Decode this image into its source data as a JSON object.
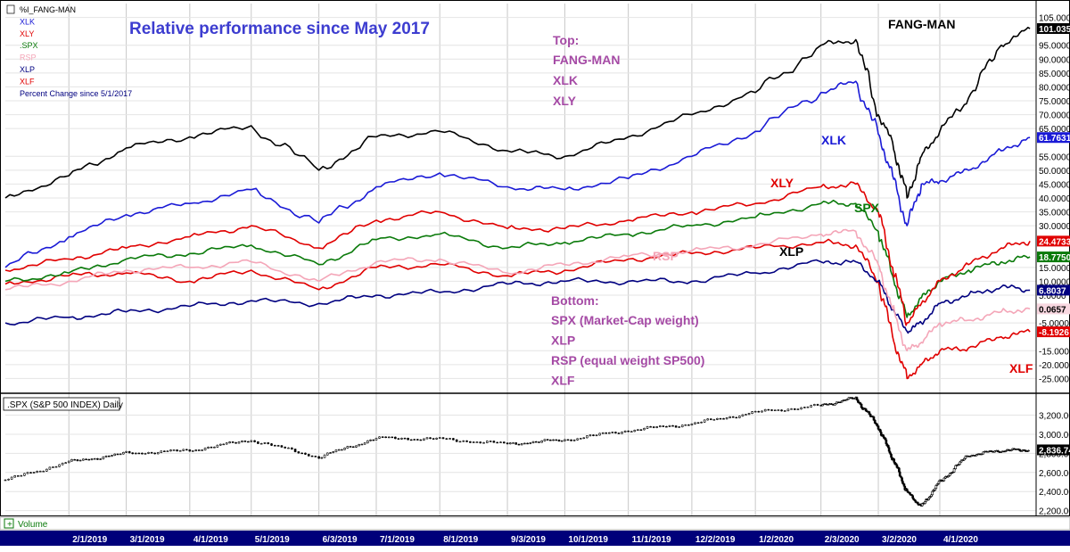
{
  "chart_data": [
    {
      "type": "line",
      "title": "Relative performance since May 2017",
      "legend_placement": "top-left",
      "legend": [
        {
          "label": "%I_FANG-MAN",
          "color": "#000000"
        },
        {
          "label": "XLK",
          "color": "#1a1ad6"
        },
        {
          "label": "XLY",
          "color": "#e00000"
        },
        {
          "label": ".SPX",
          "color": "#0a7a0a"
        },
        {
          "label": "RSP",
          "color": "#f4a6b8"
        },
        {
          "label": "XLP",
          "color": "#000080"
        },
        {
          "label": "XLF",
          "color": "#e00000"
        },
        {
          "label": "Percent Change since 5/1/2017",
          "color": "#000080"
        }
      ],
      "annotations": {
        "top_header": "Top:",
        "top_items": [
          "FANG-MAN",
          "XLK",
          "XLY"
        ],
        "bottom_header": "Bottom:",
        "bottom_items": [
          "SPX (Market-Cap weight)",
          "XLP",
          "RSP (equal weight SP500)",
          "XLF"
        ],
        "series_labels": [
          {
            "text": "FANG-MAN",
            "color": "#000000"
          },
          {
            "text": "XLK",
            "color": "#1a1ad6"
          },
          {
            "text": "XLY",
            "color": "#e00000"
          },
          {
            "text": "SPX",
            "color": "#0a7a0a"
          },
          {
            "text": "RSP",
            "color": "#f4a6b8"
          },
          {
            "text": "XLP",
            "color": "#000000"
          },
          {
            "text": "XLF",
            "color": "#e00000"
          }
        ]
      },
      "ylabel": "",
      "ylim": [
        -30,
        110
      ],
      "y_ticks": [
        105,
        95,
        90,
        85,
        80,
        75,
        70,
        65,
        55,
        50,
        45,
        40,
        35,
        30,
        15,
        10,
        5,
        -5,
        -15,
        -20,
        -25
      ],
      "y_tick_labels": [
        "105.000",
        "95.0000",
        "90.0000",
        "85.0000",
        "80.0000",
        "75.0000",
        "70.0000",
        "65.0000",
        "55.0000",
        "50.0000",
        "45.0000",
        "40.0000",
        "35.0000",
        "30.0000",
        "15.0000",
        "10.0000",
        "5.0000",
        "-5.0000",
        "-15.0000",
        "-20.0000",
        "-25.0000"
      ],
      "grid": true,
      "x_dates": [
        "2019-01-01",
        "2019-02-01",
        "2019-03-01",
        "2019-04-01",
        "2019-05-01",
        "2019-06-03",
        "2019-07-01",
        "2019-08-01",
        "2019-09-03",
        "2019-10-01",
        "2019-11-01",
        "2019-12-02",
        "2020-01-02",
        "2020-02-03",
        "2020-02-20",
        "2020-03-02",
        "2020-03-09",
        "2020-03-16",
        "2020-03-23",
        "2020-04-01",
        "2020-04-15",
        "2020-05-01",
        "2020-05-15"
      ],
      "series": [
        {
          "name": "%I_FANG-MAN",
          "color": "#000000",
          "last_value": "101.035",
          "values": [
            40,
            48,
            58,
            62,
            66,
            50,
            62,
            64,
            57,
            55,
            62,
            70,
            78,
            95,
            97,
            70,
            60,
            40,
            55,
            64,
            76,
            95,
            101
          ]
        },
        {
          "name": "XLK",
          "color": "#1a1ad6",
          "last_value": "61.7631",
          "values": [
            15,
            26,
            34,
            38,
            43,
            31,
            44,
            49,
            44,
            43,
            47,
            55,
            64,
            78,
            82,
            63,
            48,
            30,
            45,
            46,
            50,
            57,
            61.76
          ]
        },
        {
          "name": "XLY",
          "color": "#e00000",
          "last_value": "24.4733",
          "values": [
            14,
            18,
            22,
            26,
            30,
            22,
            32,
            35,
            29,
            29,
            32,
            35,
            38,
            44,
            45,
            35,
            15,
            -5,
            2,
            10,
            16,
            22,
            24.47
          ]
        },
        {
          "name": ".SPX",
          "color": "#0a7a0a",
          "last_value": "18.7750",
          "values": [
            10,
            13,
            18,
            20,
            23,
            16,
            25,
            27,
            22,
            24,
            27,
            30,
            33,
            38,
            38,
            28,
            12,
            -3,
            4,
            10,
            14,
            17,
            18.78
          ]
        },
        {
          "name": "RSP",
          "color": "#f4a6b8",
          "last_value": "0.0657",
          "values": [
            7,
            10,
            14,
            15,
            17,
            10,
            17,
            18,
            13,
            16,
            19,
            21,
            23,
            27,
            28,
            16,
            0,
            -15,
            -12,
            -5,
            -4,
            -1,
            0.07
          ]
        },
        {
          "name": "XLP",
          "color": "#000080",
          "last_value": "6.8037",
          "values": [
            -5,
            -3,
            -1,
            1,
            3,
            2,
            5,
            6,
            9,
            10,
            10,
            10,
            13,
            17,
            17,
            10,
            0,
            -8,
            -5,
            2,
            5,
            8,
            6.8
          ]
        },
        {
          "name": "XLF",
          "color": "#e00000",
          "last_value": "-8.1926",
          "values": [
            9,
            12,
            13,
            10,
            14,
            7,
            15,
            16,
            12,
            14,
            18,
            20,
            22,
            24,
            23,
            10,
            -10,
            -25,
            -20,
            -15,
            -14,
            -10,
            -8.19
          ]
        }
      ]
    },
    {
      "type": "candlestick",
      "title": ".SPX (S&P 500 INDEX) Daily",
      "ylim": [
        2150,
        3420
      ],
      "y_ticks": [
        3200,
        3000,
        2800,
        2600,
        2400,
        2200
      ],
      "y_tick_labels": [
        "3,200.00",
        "3,000.00",
        "2,800.00",
        "2,600.00",
        "2,400.00",
        "2,200.00"
      ],
      "last_value": "2,836.74",
      "x_dates": [
        "2019-01-01",
        "2019-02-01",
        "2019-03-01",
        "2019-04-01",
        "2019-05-01",
        "2019-06-03",
        "2019-07-01",
        "2019-08-01",
        "2019-09-03",
        "2019-10-01",
        "2019-11-01",
        "2019-12-02",
        "2020-01-02",
        "2020-02-03",
        "2020-02-20",
        "2020-03-02",
        "2020-03-09",
        "2020-03-16",
        "2020-03-23",
        "2020-04-01",
        "2020-04-15",
        "2020-05-01",
        "2020-05-15"
      ],
      "close": [
        2520,
        2710,
        2800,
        2830,
        2940,
        2760,
        2960,
        2950,
        2900,
        2940,
        3040,
        3110,
        3230,
        3300,
        3380,
        3080,
        2750,
        2400,
        2240,
        2500,
        2780,
        2830,
        2836.74
      ]
    }
  ],
  "volume_label": "Volume",
  "x_axis": {
    "tick_labels": [
      "2/1/2019",
      "3/1/2019",
      "4/1/2019",
      "5/1/2019",
      "6/3/2019",
      "7/1/2019",
      "8/1/2019",
      "9/3/2019",
      "10/1/2019",
      "11/1/2019",
      "12/2/2019",
      "1/2/2020",
      "2/3/2020",
      "3/2/2020",
      "4/1/2020"
    ],
    "tick_dates": [
      "2019-02-01",
      "2019-03-01",
      "2019-04-01",
      "2019-05-01",
      "2019-06-03",
      "2019-07-01",
      "2019-08-01",
      "2019-09-03",
      "2019-10-01",
      "2019-11-01",
      "2019-12-02",
      "2020-01-02",
      "2020-02-03",
      "2020-03-02",
      "2020-04-01"
    ]
  },
  "colors": {
    "axis_bar": "#00007a",
    "grid": "#c8c8c8",
    "candle": "#000000"
  }
}
